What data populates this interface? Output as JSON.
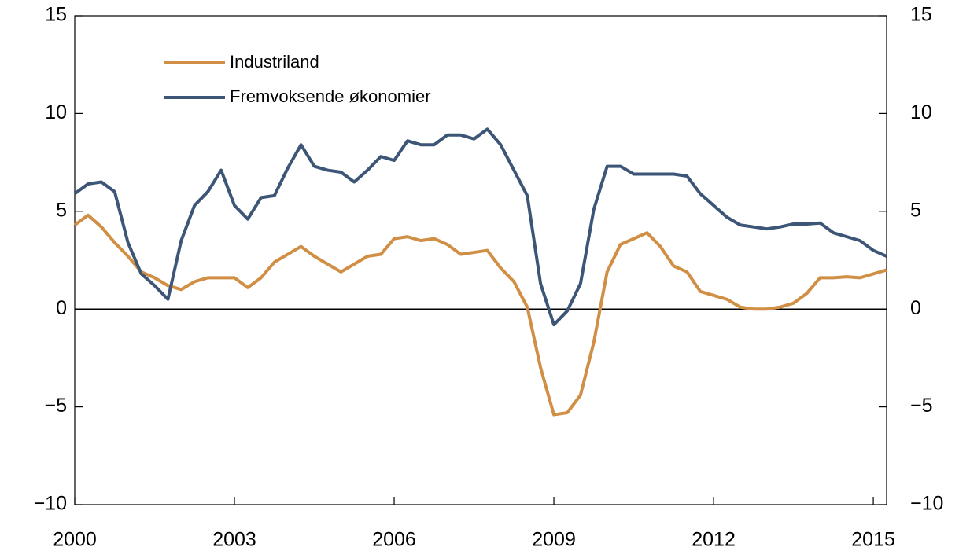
{
  "chart_data": {
    "type": "line",
    "x": [
      2000,
      2000.25,
      2000.5,
      2000.75,
      2001,
      2001.25,
      2001.5,
      2001.75,
      2002,
      2002.25,
      2002.5,
      2002.75,
      2003,
      2003.25,
      2003.5,
      2003.75,
      2004,
      2004.25,
      2004.5,
      2004.75,
      2005,
      2005.25,
      2005.5,
      2005.75,
      2006,
      2006.25,
      2006.5,
      2006.75,
      2007,
      2007.25,
      2007.5,
      2007.75,
      2008,
      2008.25,
      2008.5,
      2008.75,
      2009,
      2009.25,
      2009.5,
      2009.75,
      2010,
      2010.25,
      2010.5,
      2010.75,
      2011,
      2011.25,
      2011.5,
      2011.75,
      2012,
      2012.25,
      2012.5,
      2012.75,
      2013,
      2013.25,
      2013.5,
      2013.75,
      2014,
      2014.25,
      2014.5,
      2014.75,
      2015,
      2015.25
    ],
    "series": [
      {
        "name": "Industriland",
        "color": "#d08f45",
        "values": [
          4.3,
          4.8,
          4.2,
          3.4,
          2.7,
          1.9,
          1.6,
          1.2,
          1.0,
          1.4,
          1.6,
          1.6,
          1.6,
          1.1,
          1.6,
          2.4,
          2.8,
          3.2,
          2.7,
          2.3,
          1.9,
          2.3,
          2.7,
          2.8,
          3.6,
          3.7,
          3.5,
          3.6,
          3.3,
          2.8,
          2.9,
          3.0,
          2.1,
          1.4,
          0.1,
          -3.0,
          -5.4,
          -5.3,
          -4.4,
          -1.7,
          1.9,
          3.3,
          3.6,
          3.9,
          3.2,
          2.2,
          1.9,
          0.9,
          0.7,
          0.5,
          0.1,
          0.0,
          0.0,
          0.1,
          0.3,
          0.8,
          1.6,
          1.6,
          1.65,
          1.6,
          1.8,
          2.0
        ]
      },
      {
        "name": "Fremvoksende økonomier",
        "color": "#3d5677",
        "values": [
          5.9,
          6.4,
          6.5,
          6.0,
          3.4,
          1.8,
          1.2,
          0.5,
          3.5,
          5.3,
          6.0,
          7.1,
          5.3,
          4.6,
          5.7,
          5.8,
          7.2,
          8.4,
          7.3,
          7.1,
          7.0,
          6.5,
          7.1,
          7.8,
          7.6,
          8.6,
          8.4,
          8.4,
          8.9,
          8.9,
          8.7,
          9.2,
          8.4,
          7.1,
          5.8,
          1.3,
          -0.8,
          -0.1,
          1.3,
          5.1,
          7.3,
          7.3,
          6.9,
          6.9,
          6.9,
          6.9,
          6.8,
          5.9,
          5.3,
          4.7,
          4.3,
          4.2,
          4.1,
          4.2,
          4.35,
          4.35,
          4.4,
          3.9,
          3.7,
          3.5,
          3.0,
          2.7
        ]
      }
    ],
    "xlim": [
      2000,
      2015.25
    ],
    "xticks": [
      2000,
      2003,
      2006,
      2009,
      2012,
      2015
    ],
    "ylim": [
      -10,
      15
    ],
    "yticks": [
      {
        "value": -10,
        "label": "−10"
      },
      {
        "value": -5,
        "label": "−5"
      },
      0,
      5,
      10,
      15
    ],
    "y2lim": [
      -10,
      15
    ],
    "y2ticks": [
      {
        "value": -10,
        "label": "−10"
      },
      {
        "value": -5,
        "label": "−5"
      },
      0,
      5,
      10,
      15
    ],
    "legend": "upper left"
  }
}
